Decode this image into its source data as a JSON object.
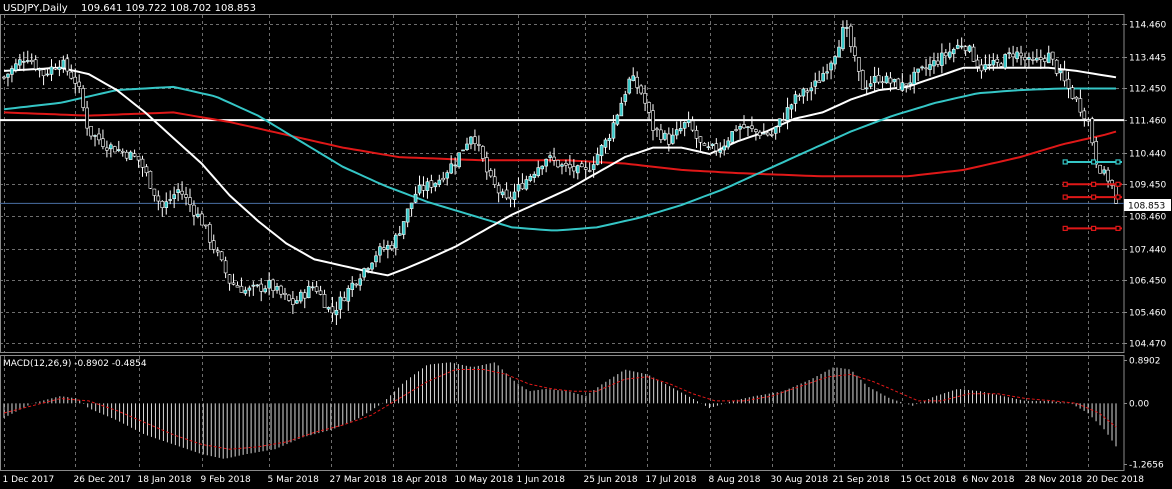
{
  "chart_data": [
    {
      "type": "candlestick",
      "title": "USDJPY,Daily",
      "ohlc_label": "109.641 109.722 108.702 108.853",
      "last_price": 108.853,
      "last_price_label": "108.853",
      "ylim": [
        104.2,
        114.75
      ],
      "y_ticks": [
        "114.460",
        "113.445",
        "112.450",
        "111.460",
        "110.440",
        "109.450",
        "108.460",
        "107.440",
        "106.450",
        "105.460",
        "104.470"
      ],
      "y_tick_values": [
        114.46,
        113.445,
        112.45,
        111.46,
        110.44,
        109.45,
        108.46,
        107.44,
        106.45,
        105.46,
        104.47
      ],
      "x_ticks": [
        "1 Dec 2017",
        "26 Dec 2017",
        "18 Jan 2018",
        "9 Feb 2018",
        "5 Mar 2018",
        "27 Mar 2018",
        "18 Apr 2018",
        "10 May 2018",
        "1 Jun 2018",
        "25 Jun 2018",
        "17 Jul 2018",
        "8 Aug 2018",
        "30 Aug 2018",
        "21 Sep 2018",
        "15 Oct 2018",
        "6 Nov 2018",
        "28 Nov 2018",
        "20 Dec 2018"
      ],
      "x_tick_days": [
        0,
        25,
        48,
        70,
        94,
        116,
        138,
        160,
        182,
        206,
        228,
        250,
        272,
        294,
        318,
        340,
        362,
        384
      ],
      "price_keyframes": [
        [
          0,
          112.8
        ],
        [
          8,
          113.5
        ],
        [
          14,
          112.9
        ],
        [
          20,
          113.3
        ],
        [
          26,
          112.6
        ],
        [
          30,
          111.1
        ],
        [
          36,
          110.7
        ],
        [
          44,
          110.4
        ],
        [
          48,
          110.2
        ],
        [
          56,
          108.7
        ],
        [
          62,
          109.3
        ],
        [
          70,
          108.3
        ],
        [
          80,
          106.4
        ],
        [
          86,
          106.1
        ],
        [
          94,
          106.3
        ],
        [
          102,
          105.7
        ],
        [
          110,
          106.3
        ],
        [
          116,
          105.4
        ],
        [
          124,
          106.4
        ],
        [
          132,
          107.3
        ],
        [
          138,
          107.6
        ],
        [
          146,
          109.2
        ],
        [
          154,
          109.6
        ],
        [
          160,
          110.2
        ],
        [
          166,
          111.1
        ],
        [
          172,
          109.6
        ],
        [
          178,
          108.9
        ],
        [
          186,
          109.7
        ],
        [
          192,
          110.3
        ],
        [
          198,
          110.0
        ],
        [
          206,
          109.8
        ],
        [
          214,
          110.9
        ],
        [
          222,
          112.8
        ],
        [
          226,
          112.3
        ],
        [
          230,
          111.2
        ],
        [
          236,
          110.8
        ],
        [
          242,
          111.4
        ],
        [
          248,
          110.5
        ],
        [
          254,
          110.6
        ],
        [
          260,
          111.3
        ],
        [
          266,
          111.1
        ],
        [
          272,
          111.0
        ],
        [
          280,
          112.1
        ],
        [
          288,
          112.6
        ],
        [
          294,
          113.5
        ],
        [
          298,
          114.4
        ],
        [
          304,
          112.5
        ],
        [
          310,
          112.8
        ],
        [
          318,
          112.5
        ],
        [
          324,
          112.9
        ],
        [
          332,
          113.4
        ],
        [
          340,
          113.9
        ],
        [
          346,
          113.1
        ],
        [
          352,
          113.2
        ],
        [
          358,
          113.6
        ],
        [
          364,
          113.2
        ],
        [
          370,
          113.5
        ],
        [
          376,
          112.6
        ],
        [
          384,
          111.5
        ],
        [
          387,
          110.2
        ],
        [
          390,
          109.7
        ],
        [
          392,
          109.6
        ],
        [
          394,
          108.85
        ]
      ],
      "sma_white_keyframes": [
        [
          0,
          113.0
        ],
        [
          20,
          113.1
        ],
        [
          30,
          112.9
        ],
        [
          40,
          112.4
        ],
        [
          50,
          111.7
        ],
        [
          60,
          110.9
        ],
        [
          70,
          110.1
        ],
        [
          80,
          109.1
        ],
        [
          90,
          108.3
        ],
        [
          100,
          107.6
        ],
        [
          110,
          107.1
        ],
        [
          120,
          106.9
        ],
        [
          130,
          106.7
        ],
        [
          136,
          106.6
        ],
        [
          142,
          106.8
        ],
        [
          150,
          107.1
        ],
        [
          160,
          107.5
        ],
        [
          170,
          108.0
        ],
        [
          180,
          108.5
        ],
        [
          190,
          108.9
        ],
        [
          200,
          109.3
        ],
        [
          210,
          109.8
        ],
        [
          220,
          110.3
        ],
        [
          230,
          110.6
        ],
        [
          240,
          110.6
        ],
        [
          250,
          110.4
        ],
        [
          260,
          110.8
        ],
        [
          270,
          111.1
        ],
        [
          280,
          111.5
        ],
        [
          290,
          111.7
        ],
        [
          300,
          112.1
        ],
        [
          310,
          112.4
        ],
        [
          320,
          112.5
        ],
        [
          330,
          112.8
        ],
        [
          340,
          113.1
        ],
        [
          350,
          113.1
        ],
        [
          360,
          113.1
        ],
        [
          370,
          113.1
        ],
        [
          380,
          113.0
        ],
        [
          394,
          112.8
        ]
      ],
      "sma_cyan_keyframes": [
        [
          0,
          111.8
        ],
        [
          20,
          112.0
        ],
        [
          40,
          112.4
        ],
        [
          60,
          112.5
        ],
        [
          75,
          112.2
        ],
        [
          90,
          111.6
        ],
        [
          105,
          110.8
        ],
        [
          120,
          110.0
        ],
        [
          135,
          109.4
        ],
        [
          150,
          108.9
        ],
        [
          165,
          108.5
        ],
        [
          180,
          108.1
        ],
        [
          195,
          108.0
        ],
        [
          210,
          108.1
        ],
        [
          225,
          108.4
        ],
        [
          240,
          108.8
        ],
        [
          255,
          109.3
        ],
        [
          270,
          109.9
        ],
        [
          285,
          110.5
        ],
        [
          300,
          111.1
        ],
        [
          315,
          111.6
        ],
        [
          330,
          112.0
        ],
        [
          345,
          112.3
        ],
        [
          360,
          112.4
        ],
        [
          375,
          112.45
        ],
        [
          394,
          112.45
        ]
      ],
      "sma_red_keyframes": [
        [
          0,
          111.7
        ],
        [
          30,
          111.6
        ],
        [
          60,
          111.7
        ],
        [
          80,
          111.4
        ],
        [
          100,
          111.0
        ],
        [
          120,
          110.6
        ],
        [
          140,
          110.3
        ],
        [
          170,
          110.2
        ],
        [
          200,
          110.2
        ],
        [
          220,
          110.1
        ],
        [
          240,
          109.9
        ],
        [
          260,
          109.8
        ],
        [
          290,
          109.7
        ],
        [
          320,
          109.7
        ],
        [
          340,
          109.9
        ],
        [
          360,
          110.3
        ],
        [
          375,
          110.7
        ],
        [
          390,
          111.0
        ],
        [
          394,
          111.1
        ]
      ],
      "horizontal_lines": [
        {
          "price": 111.46,
          "color": "#ffffff"
        },
        {
          "price": 108.853,
          "color": "#4a6fa5"
        }
      ],
      "markers": [
        {
          "price": 110.15,
          "color": "#35c6c6",
          "from_day": 376
        },
        {
          "price": 109.45,
          "color": "#e01818",
          "from_day": 376
        },
        {
          "price": 109.05,
          "color": "#e01818",
          "from_day": 376
        },
        {
          "price": 108.07,
          "color": "#e01818",
          "from_day": 376
        }
      ]
    },
    {
      "type": "macd_histogram",
      "title": "MACD(12,26,9) -0.8902 -0.4854",
      "y_ticks": [
        "0.8902",
        "0.00",
        "-1.2656"
      ],
      "y_tick_values": [
        0.8902,
        0.0,
        -1.2656
      ],
      "ylim": [
        -1.38,
        0.98
      ],
      "histogram_keyframes": [
        [
          0,
          -0.3
        ],
        [
          10,
          0.0
        ],
        [
          20,
          0.15
        ],
        [
          26,
          0.1
        ],
        [
          30,
          -0.1
        ],
        [
          40,
          -0.35
        ],
        [
          50,
          -0.65
        ],
        [
          60,
          -0.85
        ],
        [
          70,
          -1.05
        ],
        [
          78,
          -1.15
        ],
        [
          86,
          -1.05
        ],
        [
          96,
          -0.95
        ],
        [
          106,
          -0.7
        ],
        [
          116,
          -0.55
        ],
        [
          126,
          -0.3
        ],
        [
          134,
          0.0
        ],
        [
          142,
          0.45
        ],
        [
          150,
          0.8
        ],
        [
          158,
          0.85
        ],
        [
          166,
          0.75
        ],
        [
          174,
          0.85
        ],
        [
          180,
          0.5
        ],
        [
          186,
          0.25
        ],
        [
          192,
          0.3
        ],
        [
          200,
          0.25
        ],
        [
          206,
          0.15
        ],
        [
          212,
          0.4
        ],
        [
          220,
          0.7
        ],
        [
          228,
          0.6
        ],
        [
          236,
          0.35
        ],
        [
          244,
          0.1
        ],
        [
          250,
          -0.1
        ],
        [
          258,
          0.05
        ],
        [
          266,
          0.15
        ],
        [
          276,
          0.25
        ],
        [
          286,
          0.5
        ],
        [
          294,
          0.75
        ],
        [
          300,
          0.7
        ],
        [
          306,
          0.35
        ],
        [
          314,
          0.1
        ],
        [
          322,
          -0.05
        ],
        [
          330,
          0.15
        ],
        [
          338,
          0.3
        ],
        [
          346,
          0.25
        ],
        [
          354,
          0.15
        ],
        [
          362,
          0.05
        ],
        [
          370,
          0.05
        ],
        [
          378,
          0.0
        ],
        [
          384,
          -0.2
        ],
        [
          390,
          -0.55
        ],
        [
          394,
          -0.89
        ]
      ],
      "signal_keyframes": [
        [
          0,
          -0.2
        ],
        [
          10,
          -0.05
        ],
        [
          20,
          0.1
        ],
        [
          30,
          0.05
        ],
        [
          40,
          -0.15
        ],
        [
          50,
          -0.4
        ],
        [
          60,
          -0.65
        ],
        [
          70,
          -0.85
        ],
        [
          80,
          -0.95
        ],
        [
          90,
          -0.9
        ],
        [
          100,
          -0.8
        ],
        [
          110,
          -0.6
        ],
        [
          120,
          -0.45
        ],
        [
          130,
          -0.25
        ],
        [
          140,
          0.1
        ],
        [
          150,
          0.45
        ],
        [
          160,
          0.7
        ],
        [
          170,
          0.7
        ],
        [
          178,
          0.6
        ],
        [
          186,
          0.4
        ],
        [
          194,
          0.3
        ],
        [
          202,
          0.25
        ],
        [
          210,
          0.25
        ],
        [
          220,
          0.5
        ],
        [
          228,
          0.55
        ],
        [
          236,
          0.4
        ],
        [
          244,
          0.2
        ],
        [
          252,
          0.05
        ],
        [
          262,
          0.05
        ],
        [
          272,
          0.15
        ],
        [
          282,
          0.35
        ],
        [
          292,
          0.55
        ],
        [
          300,
          0.6
        ],
        [
          308,
          0.45
        ],
        [
          316,
          0.25
        ],
        [
          324,
          0.05
        ],
        [
          332,
          0.05
        ],
        [
          342,
          0.2
        ],
        [
          352,
          0.2
        ],
        [
          362,
          0.1
        ],
        [
          372,
          0.05
        ],
        [
          380,
          0.0
        ],
        [
          388,
          -0.2
        ],
        [
          394,
          -0.49
        ]
      ]
    }
  ]
}
